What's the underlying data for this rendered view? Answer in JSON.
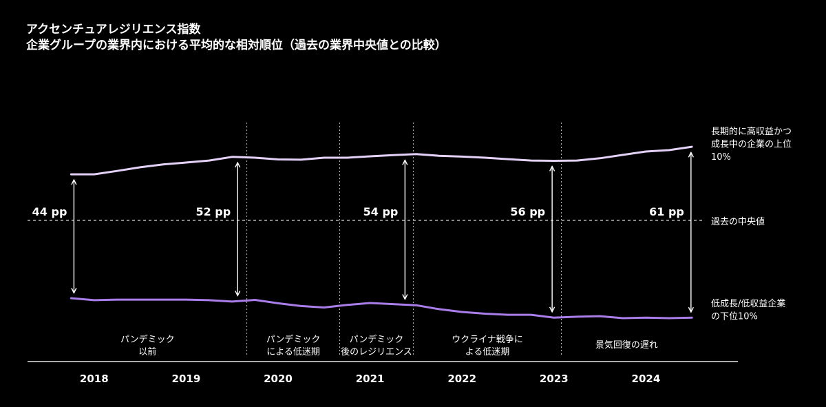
{
  "colors": {
    "background": "#000000",
    "text": "#FFFFFF",
    "top_series": "#E3D1F7",
    "bottom_series": "#A97DEA",
    "reference_line": "#DADADA",
    "divider": "#BDBDBD",
    "axis": "#E6E6E6",
    "arrow": "#FFFFFF"
  },
  "chart_data": {
    "type": "line",
    "title": "アクセンチュアレジリエンス指数",
    "subtitle": "企業グループの業界内における平均的な相対順位（過去の業界中央値との比較）",
    "xlim": [
      2018,
      2025
    ],
    "ylim": [
      -40,
      30
    ],
    "grid": false,
    "x_ticks": [
      {
        "x": 2018.5,
        "label": "2018"
      },
      {
        "x": 2019.5,
        "label": "2019"
      },
      {
        "x": 2020.5,
        "label": "2020"
      },
      {
        "x": 2021.5,
        "label": "2021"
      },
      {
        "x": 2022.5,
        "label": "2022"
      },
      {
        "x": 2023.5,
        "label": "2023"
      },
      {
        "x": 2024.5,
        "label": "2024"
      }
    ],
    "x": [
      2018.25,
      2018.5,
      2018.75,
      2019.0,
      2019.25,
      2019.5,
      2019.75,
      2020.0,
      2020.25,
      2020.5,
      2020.75,
      2021.0,
      2021.25,
      2021.5,
      2021.75,
      2022.0,
      2022.25,
      2022.5,
      2022.75,
      2023.0,
      2023.25,
      2023.5,
      2023.75,
      2024.0,
      2024.25,
      2024.5,
      2024.75,
      2025.0
    ],
    "series": [
      {
        "label_lines": [
          "長期的に高収益かつ",
          "成長中の企業の上位",
          "10%"
        ],
        "color": "#E3D1F7",
        "values": [
          16.4,
          16.4,
          17.6,
          18.9,
          19.9,
          20.6,
          21.3,
          22.6,
          22.3,
          21.7,
          21.6,
          22.3,
          22.3,
          22.8,
          23.2,
          23.6,
          23.0,
          22.7,
          22.3,
          21.8,
          21.3,
          21.2,
          21.3,
          22.1,
          23.3,
          24.5,
          25.0,
          26.2
        ]
      },
      {
        "label_lines": [
          "低成長/低収益企業",
          "の下位10%"
        ],
        "color": "#A97DEA",
        "values": [
          -27.7,
          -28.4,
          -28.2,
          -28.2,
          -28.2,
          -28.2,
          -28.4,
          -28.9,
          -28.3,
          -29.5,
          -30.5,
          -31.0,
          -30.1,
          -29.4,
          -29.8,
          -30.2,
          -31.6,
          -32.6,
          -33.2,
          -33.6,
          -33.6,
          -34.6,
          -34.3,
          -34.1,
          -34.8,
          -34.6,
          -34.8,
          -34.6
        ]
      }
    ],
    "reference_line": {
      "y": 0,
      "label": "過去の中央値"
    },
    "periods": [
      {
        "start": 2018.0,
        "end": 2020.16,
        "lines": [
          "パンデミック",
          "以前"
        ]
      },
      {
        "start": 2020.16,
        "end": 2021.17,
        "lines": [
          "パンデミック",
          "による低迷期"
        ]
      },
      {
        "start": 2021.17,
        "end": 2021.97,
        "lines": [
          "パンデミック",
          "後のレジリエンス"
        ]
      },
      {
        "start": 2021.97,
        "end": 2023.58,
        "lines": [
          "ウクライナ戦争に",
          "よる低迷期"
        ]
      },
      {
        "start": 2023.58,
        "end": 2025.0,
        "lines": [
          "景気回復の遅れ"
        ]
      }
    ],
    "gap_annotations": [
      {
        "x": 2018.28,
        "label": "44 pp"
      },
      {
        "x": 2020.06,
        "label": "52 pp"
      },
      {
        "x": 2021.88,
        "label": "54 pp"
      },
      {
        "x": 2023.48,
        "label": "56 pp"
      },
      {
        "x": 2024.99,
        "label": "61 pp"
      }
    ]
  }
}
